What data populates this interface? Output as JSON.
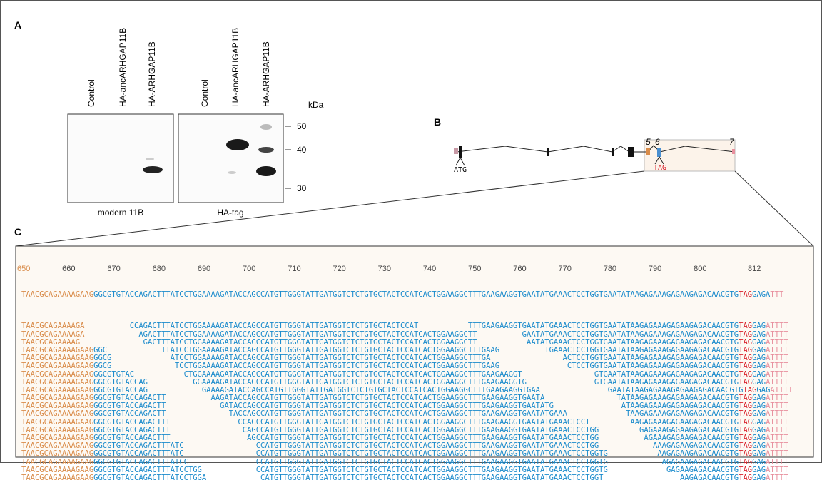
{
  "panel_labels": [
    "A",
    "B",
    "C"
  ],
  "blot": {
    "lanes": [
      "Control",
      "HA-ancARHGAP11B",
      "HA-ARHGAP11B",
      "Control",
      "HA-ancARHGAP11B",
      "HA-ARHGAP11B"
    ],
    "unit": "kDa",
    "markers": [
      "50",
      "40",
      "30"
    ],
    "captions": [
      "modern 11B",
      "HA-tag"
    ]
  },
  "gene": {
    "exons": [
      "5",
      "6",
      "7"
    ],
    "start": "ATG",
    "stop": "TAG"
  },
  "alignment": {
    "positions": [
      650,
      660,
      670,
      680,
      690,
      700,
      710,
      720,
      730,
      740,
      750,
      760,
      770,
      780,
      790,
      800,
      812
    ],
    "colors": [
      "#d98c4a",
      "#1b8bcc",
      "#d9222c",
      "#1b8bcc",
      "#e8909e"
    ],
    "reference": [
      "TAACGCAGAAAAGAAG",
      "GGCGTGTACCAGACTTTATCCTGGAAAAGATACCAGCCATGTTGGGTATTGATGGTCTCTGTGCTACTCCATCACTGGAAGGCTTTGAAGAAGGTGAATATGAAACTCCTGGTGAATATAAGAGAAAGAGAAGAGACAACGTG",
      "TAG",
      "GAGA",
      "TTT"
    ],
    "reads": [
      [
        "TAACGCAGAAAAGA",
        "        CCAGACTTTATCCTGGAAAAGATACCAGCCATGTTGGGTATTGATGGTCTCTGTGCTACTCCAT           TTTGAAGAAGGTGAATATGAAACTCCTGGTGAATATAAGAGAAAGAGAAGAGACAACGTG",
        "TAG",
        "GAG",
        "ATTTT"
      ],
      [
        "TAACGCAGAAAAGA",
        "          AGACTTTATCCTGGAAAAGATACCAGCCATGTTGGGTATTGATGGTCTCTGTGCTACTCCATCACTGGAAGGCTT          GAATATGAAACTCCTGGTGAATATAAGAGAAAGAGAAGAGACAACGTG",
        "TAG",
        "GAG",
        "ATTTT"
      ],
      [
        "TAACGCAGAAAAG",
        "           GACTTTATCCTGGAAAAGATACCAGCCATGTTGGGTATTGATGGTCTCTGTGCTACTCCATCACTGGAAGGCTT           AATATGAAACTCCTGGTGAATATAAGAGAAAGAGAAGAGACAACGTG",
        "TAG",
        "GAG",
        "ATTTT"
      ],
      [
        "TAACGCAGAAAAGAAG",
        "GGC            TTATCCTGGAAAAGATACCAGCCATGTTGGGTATTGATGGTCTCTGTGCTACTCCATCACTGGAAGGCTTTGAAG          TGAAACTCCTGGTGAATATAAGAGAAAGAGAAGAGACAACGTG",
        "TAG",
        "GAG",
        "ATTTT"
      ],
      [
        "TAACGCAGAAAAGAAG",
        "GGCG             ATCCTGGAAAAGATACCAGCCATGTTGGGTATTGATGGTCTCTGTGCTACTCCATCACTGGAAGGCTTTGA                ACTCCTGGTGAATATAAGAGAAAGAGAAGAGACAACGTG",
        "TAG",
        "GAG",
        "ATTTT"
      ],
      [
        "TAACGCAGAAAAGAAG",
        "GGCG              TCCTGGAAAAGATACCAGCCATGTTGGGTATTGATGGTCTCTGTGCTACTCCATCACTGGAAGGCTTTGAAG               CTCCTGGTGAATATAAGAGAAAGAGAAGAGACAACGTG",
        "TAG",
        "GAG",
        "ATTTT"
      ],
      [
        "TAACGCAGAAAAGAAG",
        "GGCGTGTAC           CTGGAAAAGATACCAGCCATGTTGGGTATTGATGGTCTCTGTGCTACTCCATCACTGGAAGGCTTTGAAGAAGGT                GTGAATATAAGAGAAAGAGAAGAGACAACGTG",
        "TAG",
        "GAG",
        "ATTTT"
      ],
      [
        "TAACGCAGAAAAGAAG",
        "GGCGTGTACCAG          GGAAAAGATACCAGCCATGTTGGGTATTGATGGTCTCTGTGCTACTCCATCACTGGAAGGCTTTGAAGAAGGTG               GTGAATATAAGAGAAAGAGAAGAGACAACGTG",
        "TAG",
        "GAG",
        "ATTTT"
      ],
      [
        "TAACGCAGAAAAGAAG",
        "GGCGTGTACCAG            GAAAAGATACCAGCCATGTTGGGTATTGATGGTCTCTGTGCTACTCCATCACTGGAAGGCTTTGAAGAAGGTGAA               GAATATAAGAGAAAGAGAAGAGACAACGTG",
        "TAG",
        "GAG",
        "ATTTT"
      ],
      [
        "TAACGCAGAAAAGAAG",
        "GGCGTGTACCAGACTT          AAGATACCAGCCATGTTGGGTATTGATGGTCTCTGTGCTACTCCATCACTGGAAGGCTTTGAAGAAGGTGAATA                TATAAGAGAAAGAGAAGAGACAACGTG",
        "TAG",
        "GAG",
        "ATTTT"
      ],
      [
        "TAACGCAGAAAAGAAG",
        "GGCGTGTACCAGACTT            GATACCAGCCATGTTGGGTATTGATGGTCTCTGTGCTACTCCATCACTGGAAGGCTTTGAAGAAGGTGAATATG               ATAAGAGAAAGAGAAGAGACAACGTG",
        "TAG",
        "GAG",
        "ATTTT"
      ],
      [
        "TAACGCAGAAAAGAAG",
        "GGCGTGTACCAGACTT              TACCAGCCATGTTGGGTATTGATGGTCTCTGTGCTACTCCATCACTGGAAGGCTTTGAAGAAGGTGAATATGAAA             TAAGAGAAAGAGAAGAGACAACGTG",
        "TAG",
        "GAG",
        "ATTTT"
      ],
      [
        "TAACGCAGAAAAGAAG",
        "GGCGTGTACCAGACTTT               CCAGCCATGTTGGGTATTGATGGTCTCTGTGCTACTCCATCACTGGAAGGCTTTGAAGAAGGTGAATATGAAACTCCT         AAGAGAAAGAGAAGAGACAACGTG",
        "TAG",
        "GAG",
        "ATTTT"
      ],
      [
        "TAACGCAGAAAAGAAG",
        "GGCGTGTACCAGACTTT                CAGCCATGTTGGGTATTGATGGTCTCTGTGCTACTCCATCACTGGAAGGCTTTGAAGAAGGTGAATATGAAACTCCTGG         GAGAAAGAGAAGAGACAACGTG",
        "TAG",
        "GAG",
        "ATTTT"
      ],
      [
        "TAACGCAGAAAAGAAG",
        "GGCGTGTACCAGACTTT                 AGCCATGTTGGGTATTGATGGTCTCTGTGCTACTCCATCACTGGAAGGCTTTGAAGAAGGTGAATATGAAACTCCTGG          AGAAAGAGAAGAGACAACGTG",
        "TAG",
        "GAG",
        "ATTTT"
      ],
      [
        "TAACGCAGAAAAGAAG",
        "GGCGTGTACCAGACTTTATC                CCATGTTGGGTATTGATGGTCTCTGTGCTACTCCATCACTGGAAGGCTTTGAAGAAGGTGAATATGAAACTCCTGG            AAAGAGAAGAGACAACGTG",
        "TAG",
        "GAG",
        "ATTTT"
      ],
      [
        "TAACGCAGAAAAGAAG",
        "GGCGTGTACCAGACTTTATC                CCATGTTGGGTATTGATGGTCTCTGTGCTACTCCATCACTGGAAGGCTTTGAAGAAGGTGAATATGAAACTCCTGGTG           AAGAGAAGAGACAACGTG",
        "TAG",
        "GAG",
        "ATTTT"
      ],
      [
        "TAACGCAGAAAAGAAG",
        "GGCGTGTACCAGACTTTATCC               CCATGTTGGGTATTGATGGTCTCTGTGCTACTCCATCACTGGAAGGCTTTGAAGAAGGTGAATATGAAACTCCTGGTG            AGAGAAGAGACAACGTG",
        "TAG",
        "GAG",
        "ATTTT"
      ],
      [
        "TAACGCAGAAAAGAAG",
        "GGCGTGTACCAGACTTTATCCTGG            CCATGTTGGGTATTGATGGTCTCTGTGCTACTCCATCACTGGAAGGCTTTGAAGAAGGTGAATATGAAACTCCTGGTG             GAGAAGAGACAACGTG",
        "TAG",
        "GAG",
        "ATTTT"
      ],
      [
        "TAACGCAGAAAAGAAG",
        "GGCGTGTACCAGACTTTATCCTGGA            CATGTTGGGTATTGATGGTCTCTGTGCTACTCCATCACTGGAAGGCTTTGAAGAAGGTGAATATGAAACTCCTGGT                 AAGAGACAACGTG",
        "TAG",
        "GAG",
        "ATTTT"
      ]
    ]
  }
}
